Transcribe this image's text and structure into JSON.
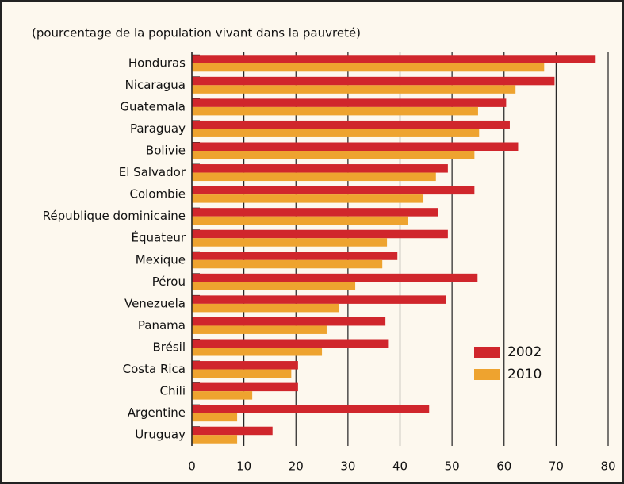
{
  "chart_data": {
    "type": "barh",
    "subtitle": "(pourcentage de la population vivant dans la pauvreté)",
    "categories": [
      "Honduras",
      "Nicaragua",
      "Guatemala",
      "Paraguay",
      "Bolivie",
      "El Salvador",
      "Colombie",
      "République dominicaine",
      "Équateur",
      "Mexique",
      "Pérou",
      "Venezuela",
      "Panama",
      "Brésil",
      "Costa Rica",
      "Chili",
      "Argentine",
      "Uruguay"
    ],
    "series": [
      {
        "name": "2002",
        "color": "#d0262c",
        "values": [
          77.6,
          69.7,
          60.4,
          61.1,
          62.7,
          49.2,
          54.3,
          47.3,
          49.2,
          39.5,
          54.9,
          48.8,
          37.2,
          37.7,
          20.4,
          20.4,
          45.6,
          15.5
        ]
      },
      {
        "name": "2010",
        "color": "#eea32f",
        "values": [
          67.7,
          62.2,
          55.0,
          55.2,
          54.3,
          46.9,
          44.5,
          41.5,
          37.5,
          36.6,
          31.4,
          28.2,
          25.9,
          25.0,
          19.1,
          11.6,
          8.7,
          8.7
        ]
      }
    ],
    "xlim": [
      0,
      80
    ],
    "xticks": [
      0,
      10,
      20,
      30,
      40,
      50,
      60,
      70,
      80
    ],
    "grid": true,
    "legend": "lower right"
  }
}
